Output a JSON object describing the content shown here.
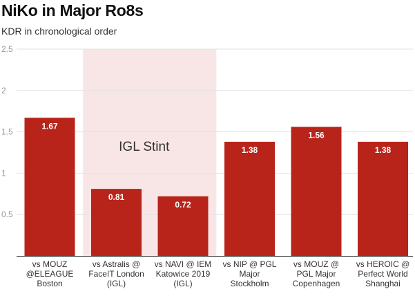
{
  "chart_data": {
    "type": "bar",
    "title": "NiKo in Major Ro8s",
    "subtitle": "KDR in chronological order",
    "xlabel": "",
    "ylabel": "",
    "ylim": [
      0,
      2.5
    ],
    "yticks": [
      0,
      0.5,
      1,
      1.5,
      2,
      2.5
    ],
    "ytick_labels": [
      "",
      "0.5",
      "1",
      "1.5",
      "2",
      "2.5"
    ],
    "grid": true,
    "categories": [
      [
        "vs MOUZ",
        "@ELEAGUE",
        "Boston"
      ],
      [
        "vs Astralis @",
        "FaceIT London",
        "(IGL)"
      ],
      [
        "vs NAVI @ IEM",
        "Katowice 2019",
        "(IGL)"
      ],
      [
        "vs NIP @ PGL",
        "Major",
        "Stockholm"
      ],
      [
        "vs MOUZ @",
        "PGL Major",
        "Copenhagen"
      ],
      [
        "vs HEROIC @",
        "Perfect World",
        "Shanghai"
      ]
    ],
    "values": [
      1.67,
      0.81,
      0.72,
      1.38,
      1.56,
      1.38
    ],
    "value_labels": [
      "1.67",
      "0.81",
      "0.72",
      "1.38",
      "1.56",
      "1.38"
    ],
    "bar_color": "#b8241a",
    "highlight": {
      "label": "IGL Stint",
      "from_category": 1,
      "to_category": 2,
      "color": "#f8e6e6"
    }
  }
}
